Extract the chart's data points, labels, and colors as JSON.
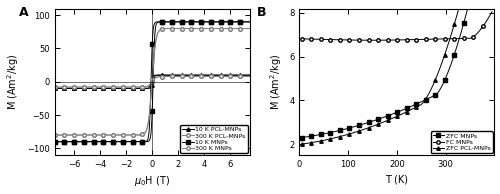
{
  "panel_A": {
    "xlabel": "$\\mu_0$H (T)",
    "ylabel": "M (Am$^2$/kg)",
    "xlim": [
      -7.5,
      7.5
    ],
    "ylim": [
      -110,
      110
    ],
    "xticks": [
      -6,
      -4,
      -2,
      0,
      2,
      4,
      6
    ],
    "yticks": [
      -100,
      -50,
      0,
      50,
      100
    ],
    "label": "A",
    "legend": [
      "10 K PCL-MNPs",
      "300 K PCL-MNPs",
      "10 K MNPs",
      "300 K MNPs"
    ],
    "Ms_10MNP": 90,
    "Ms_300MNP": 80,
    "Ms_10PCL": 10,
    "Ms_300PCL": 8,
    "Hc_10": 0.08,
    "Hc_300": 0.005,
    "slope_10": 8,
    "slope_300": 3.5
  },
  "panel_B": {
    "xlabel": "T (K)",
    "ylabel": "M (Am$^2$/kg)",
    "xlim": [
      0,
      400
    ],
    "ylim": [
      1.5,
      8.2
    ],
    "xticks": [
      0,
      100,
      200,
      300
    ],
    "yticks": [
      2,
      4,
      6,
      8
    ],
    "label": "B",
    "legend": [
      "ZFC MNPs",
      "FC MNPs",
      "ZFC PCL-MNPs"
    ]
  }
}
